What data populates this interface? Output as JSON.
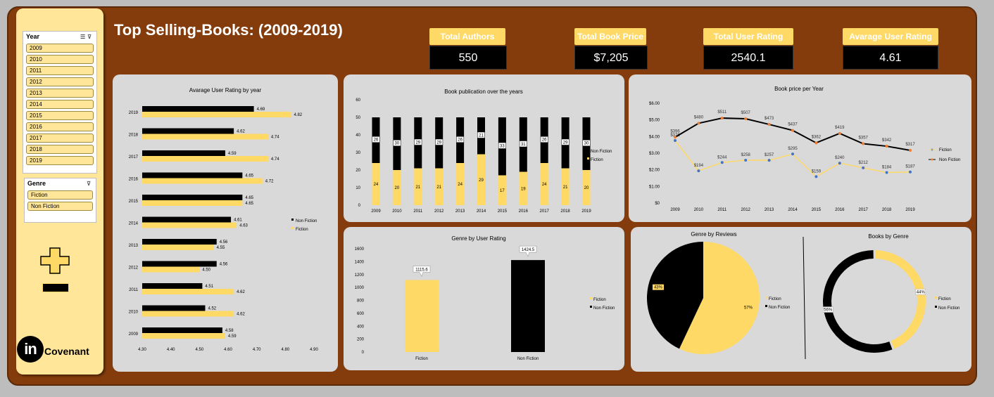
{
  "title": "Top Selling-Books: (2009-2019)",
  "kpis": [
    {
      "label": "Total Authors",
      "value": "550"
    },
    {
      "label": "Total Book Price",
      "value": "$7,205"
    },
    {
      "label": "Total User Rating",
      "value": "2540.1"
    },
    {
      "label": "Avarage  User Rating",
      "value": "4.61"
    }
  ],
  "slicers": {
    "year": {
      "title": "Year",
      "items": [
        "2009",
        "2010",
        "2011",
        "2012",
        "2013",
        "2014",
        "2015",
        "2016",
        "2017",
        "2018",
        "2019"
      ]
    },
    "genre": {
      "title": "Genre",
      "items": [
        "Fiction",
        "Non Fiction"
      ]
    }
  },
  "logo": {
    "mark": "in",
    "text": "Covenant"
  },
  "colors": {
    "fiction": "#ffd966",
    "nonfiction": "#000000",
    "background": "#843c0c",
    "panel": "#d9d9d9"
  },
  "chart_data": [
    {
      "type": "bar",
      "orientation": "horizontal",
      "title": "Avarage User Rating by year",
      "categories": [
        "2019",
        "2018",
        "2017",
        "2016",
        "2015",
        "2014",
        "2013",
        "2012",
        "2011",
        "2010",
        "2009"
      ],
      "series": [
        {
          "name": "Non Fiction",
          "values": [
            4.69,
            4.62,
            4.59,
            4.65,
            4.65,
            4.61,
            4.56,
            4.56,
            4.51,
            4.52,
            4.58
          ],
          "labels": [
            "4.69",
            "4.62",
            "4.59",
            "4.65",
            "4.65",
            "4.61",
            "4.56",
            "4.56",
            "4.51",
            "4.52",
            "4.58"
          ]
        },
        {
          "name": "Fiction",
          "values": [
            4.82,
            4.74,
            4.74,
            4.72,
            4.65,
            4.63,
            4.55,
            4.5,
            4.62,
            4.62,
            4.59
          ],
          "labels": [
            "4.82",
            "4.74",
            "4.74",
            "4.72",
            "4.65",
            "4.63",
            "4.55",
            "4.50",
            "4.62",
            "4.62",
            "4.59"
          ]
        }
      ],
      "xlim": [
        4.3,
        4.9
      ],
      "xticks": [
        "4.30",
        "4.40",
        "4.50",
        "4.60",
        "4.70",
        "4.80",
        "4.90"
      ],
      "legend": "right"
    },
    {
      "type": "bar",
      "stacked": true,
      "title": "Book publication over the years",
      "categories": [
        "2009",
        "2010",
        "2011",
        "2012",
        "2013",
        "2014",
        "2015",
        "2016",
        "2017",
        "2018",
        "2019"
      ],
      "series": [
        {
          "name": "Fiction",
          "values": [
            24,
            20,
            21,
            21,
            24,
            29,
            17,
            19,
            24,
            21,
            20
          ]
        },
        {
          "name": "Non Fiction",
          "values": [
            26,
            30,
            29,
            29,
            26,
            21,
            33,
            31,
            26,
            29,
            30
          ]
        }
      ],
      "ylim": [
        0,
        60
      ],
      "yticks": [
        "0",
        "10",
        "20",
        "30",
        "40",
        "50",
        "60"
      ],
      "legend": "right"
    },
    {
      "type": "line",
      "title": "Book price per Year",
      "x": [
        "2009",
        "2010",
        "2011",
        "2012",
        "2013",
        "2014",
        "2015",
        "2016",
        "2017",
        "2018",
        "2019"
      ],
      "series": [
        {
          "name": "Fiction",
          "values": [
            3.76,
            1.94,
            2.44,
            2.58,
            2.57,
            2.95,
            1.59,
            2.4,
            2.12,
            1.84,
            1.87
          ],
          "labels": [
            "$376",
            "$194",
            "$244",
            "$258",
            "$257",
            "$295",
            "$159",
            "$240",
            "$212",
            "$184",
            "$187"
          ]
        },
        {
          "name": "Non Fiction",
          "values": [
            3.96,
            4.8,
            5.11,
            5.07,
            4.73,
            4.37,
            3.62,
            4.19,
            3.57,
            3.42,
            3.17
          ],
          "labels": [
            "$396",
            "$480",
            "$511",
            "$507",
            "$473",
            "$437",
            "$362",
            "$419",
            "$357",
            "$342",
            "$317"
          ]
        }
      ],
      "ylim": [
        0,
        6
      ],
      "yticks": [
        "$0",
        "$1.00",
        "$2.00",
        "$3.00",
        "$4.00",
        "$5.00",
        "$6.00"
      ],
      "legend": "right"
    },
    {
      "type": "bar",
      "title": "Genre by User Rating",
      "categories": [
        "Fiction",
        "Non Fiction"
      ],
      "values": [
        1115.6,
        1424.5
      ],
      "labels": [
        "1115.6",
        "1424.5"
      ],
      "ylim": [
        0,
        1600
      ],
      "yticks": [
        "0",
        "200",
        "400",
        "600",
        "800",
        "1000",
        "1200",
        "1400",
        "1600"
      ],
      "legend_entries": [
        "Fiction",
        "Non Fiction"
      ],
      "legend": "right"
    },
    {
      "type": "pie",
      "title": "Genre by Reviews",
      "categories": [
        "Fiction",
        "Non Fiction"
      ],
      "values": [
        57,
        43
      ],
      "labels": [
        "57%",
        "43%"
      ],
      "legend": "right"
    },
    {
      "type": "pie",
      "variant": "donut",
      "title": "Books by Genre",
      "categories": [
        "Fiction",
        "Non Fiction"
      ],
      "values": [
        44,
        56
      ],
      "labels": [
        "44%",
        "56%"
      ],
      "legend": "right"
    }
  ]
}
